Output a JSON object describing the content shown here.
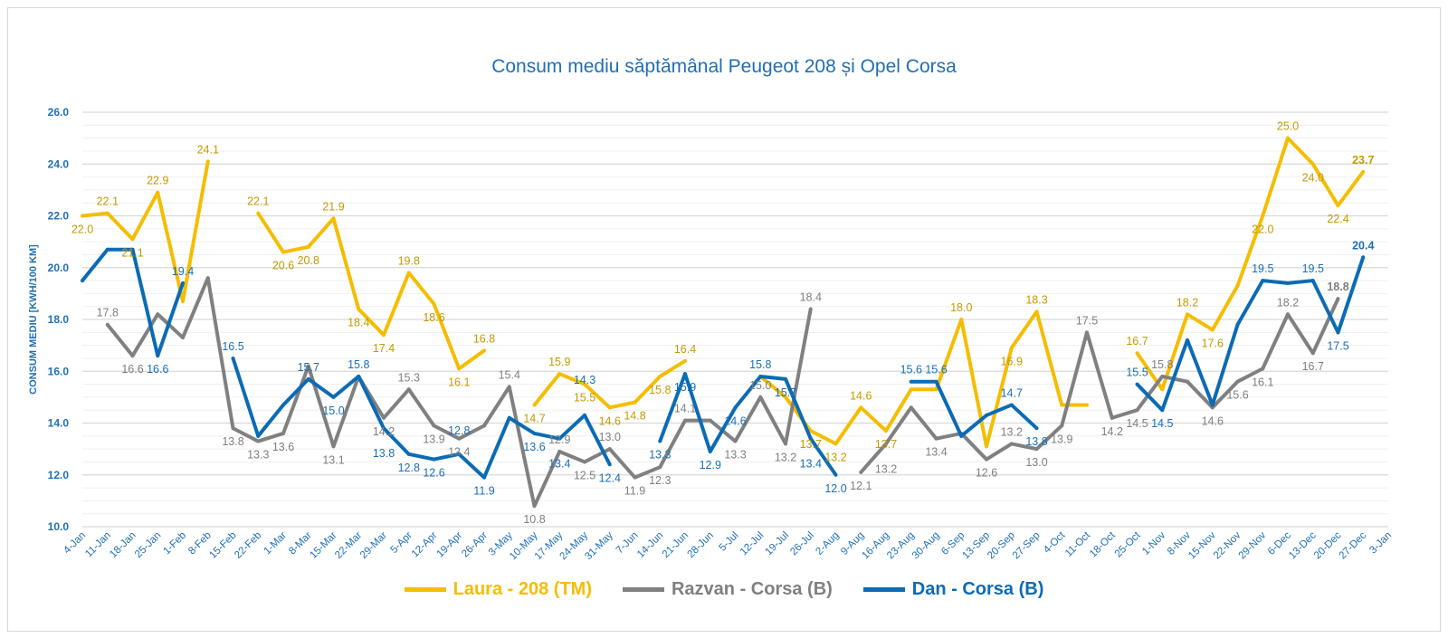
{
  "chart_data": {
    "type": "line",
    "title": "Consum mediu săptămânal Peugeot 208 și Opel Corsa",
    "ylabel": "CONSUM MEDIU [KWH/100 KM]",
    "xlabel": "",
    "ylim": [
      10,
      26
    ],
    "yticks": [
      "10.0",
      "12.0",
      "14.0",
      "16.0",
      "18.0",
      "20.0",
      "22.0",
      "24.0",
      "26.0"
    ],
    "grid": true,
    "legend_position": "bottom",
    "categories": [
      "4-Jan",
      "11-Jan",
      "18-Jan",
      "25-Jan",
      "1-Feb",
      "8-Feb",
      "15-Feb",
      "22-Feb",
      "1-Mar",
      "8-Mar",
      "15-Mar",
      "22-Mar",
      "29-Mar",
      "5-Apr",
      "12-Apr",
      "19-Apr",
      "26-Apr",
      "3-May",
      "10-May",
      "17-May",
      "24-May",
      "31-May",
      "7-Jun",
      "14-Jun",
      "21-Jun",
      "28-Jun",
      "5-Jul",
      "12-Jul",
      "19-Jul",
      "26-Jul",
      "2-Aug",
      "9-Aug",
      "16-Aug",
      "23-Aug",
      "30-Aug",
      "6-Sep",
      "13-Sep",
      "20-Sep",
      "27-Sep",
      "4-Oct",
      "11-Oct",
      "18-Oct",
      "25-Oct",
      "1-Nov",
      "8-Nov",
      "15-Nov",
      "22-Nov",
      "29-Nov",
      "6-Dec",
      "13-Dec",
      "20-Dec",
      "27-Dec",
      "3-Jan"
    ],
    "series": [
      {
        "name": "Laura - 208 (TM)",
        "color": "#f5bd00",
        "label_color": "#c49a00",
        "values": [
          22.0,
          22.1,
          21.1,
          22.9,
          18.7,
          24.1,
          null,
          22.1,
          20.6,
          20.8,
          21.9,
          18.4,
          17.4,
          19.8,
          18.6,
          16.1,
          16.8,
          null,
          14.7,
          15.9,
          15.5,
          14.6,
          14.8,
          15.8,
          16.4,
          null,
          null,
          15.8,
          15.0,
          13.7,
          13.2,
          14.6,
          13.7,
          15.3,
          15.3,
          18.0,
          13.1,
          16.9,
          18.3,
          14.7,
          14.7,
          null,
          16.7,
          15.3,
          18.2,
          17.6,
          19.3,
          22.0,
          25.0,
          24.0,
          22.4,
          23.7,
          null
        ],
        "labeled": [
          true,
          true,
          true,
          true,
          false,
          true,
          false,
          true,
          true,
          true,
          true,
          true,
          true,
          true,
          true,
          true,
          true,
          false,
          true,
          true,
          true,
          true,
          true,
          true,
          true,
          false,
          false,
          false,
          false,
          true,
          true,
          true,
          true,
          false,
          false,
          true,
          false,
          true,
          true,
          false,
          false,
          false,
          true,
          false,
          true,
          true,
          false,
          true,
          true,
          true,
          true,
          true,
          false
        ]
      },
      {
        "name": "Razvan - Corsa (B)",
        "color": "#808080",
        "label_color": "#7f7f7f",
        "values": [
          null,
          17.8,
          16.6,
          18.2,
          17.3,
          19.6,
          13.8,
          13.3,
          13.6,
          16.2,
          13.1,
          15.8,
          14.2,
          15.3,
          13.9,
          13.4,
          13.9,
          15.4,
          10.8,
          12.9,
          12.5,
          13.0,
          11.9,
          12.3,
          14.1,
          14.1,
          13.3,
          15.0,
          13.2,
          18.4,
          null,
          12.1,
          13.2,
          14.6,
          13.4,
          13.6,
          12.6,
          13.2,
          13.0,
          13.9,
          17.5,
          14.2,
          14.5,
          15.8,
          15.6,
          14.6,
          15.6,
          16.1,
          18.2,
          16.7,
          18.8,
          null,
          null
        ],
        "labeled": [
          false,
          true,
          true,
          false,
          false,
          false,
          true,
          true,
          true,
          false,
          true,
          false,
          true,
          true,
          true,
          true,
          false,
          true,
          true,
          true,
          true,
          true,
          true,
          true,
          true,
          false,
          true,
          true,
          true,
          true,
          false,
          true,
          true,
          false,
          true,
          false,
          true,
          true,
          true,
          true,
          true,
          true,
          true,
          true,
          false,
          true,
          true,
          true,
          true,
          true,
          true,
          false,
          false
        ]
      },
      {
        "name": "Dan - Corsa (B)",
        "color": "#0b6bb5",
        "label_color": "#1a6fb7",
        "values": [
          19.5,
          20.7,
          20.7,
          16.6,
          19.4,
          null,
          16.5,
          13.5,
          14.7,
          15.7,
          15.0,
          15.8,
          13.8,
          12.8,
          12.6,
          12.8,
          11.9,
          14.2,
          13.6,
          13.4,
          14.3,
          12.4,
          null,
          13.3,
          15.9,
          12.9,
          14.6,
          15.8,
          15.7,
          13.4,
          12.0,
          null,
          null,
          15.6,
          15.6,
          13.5,
          14.3,
          14.7,
          13.8,
          null,
          null,
          null,
          15.5,
          14.5,
          17.2,
          14.7,
          17.8,
          19.5,
          19.4,
          19.5,
          17.5,
          20.4,
          null
        ],
        "labeled": [
          false,
          false,
          false,
          true,
          true,
          false,
          true,
          false,
          false,
          true,
          true,
          true,
          true,
          true,
          true,
          true,
          true,
          false,
          true,
          true,
          true,
          true,
          false,
          true,
          true,
          true,
          true,
          true,
          true,
          true,
          true,
          false,
          false,
          true,
          true,
          false,
          false,
          true,
          true,
          false,
          false,
          false,
          true,
          true,
          false,
          false,
          false,
          true,
          false,
          true,
          true,
          true,
          false
        ]
      }
    ]
  }
}
